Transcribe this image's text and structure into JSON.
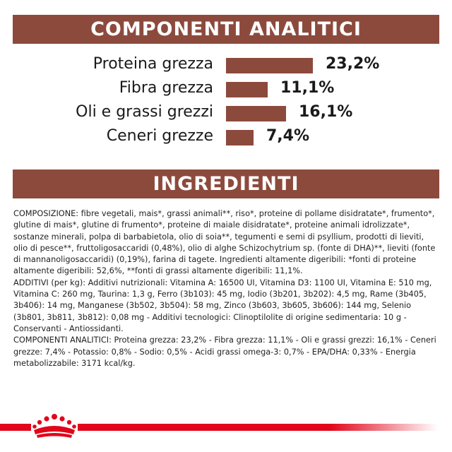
{
  "analytic": {
    "title": "COMPONENTI ANALITICI",
    "rows": [
      {
        "label": "Proteina grezza",
        "value": "23,2%",
        "percent": 23.2
      },
      {
        "label": "Fibra grezza",
        "value": "11,1%",
        "percent": 11.1
      },
      {
        "label": "Oli e grassi grezzi",
        "value": "16,1%",
        "percent": 16.1
      },
      {
        "label": "Ceneri grezze",
        "value": "7,4%",
        "percent": 7.4
      }
    ],
    "bar_color": "#8c4a3d"
  },
  "ingredients": {
    "title": "INGREDIENTI",
    "paragraphs": [
      "COMPOSIZIONE: fibre vegetali, mais*, grassi animali**, riso*, proteine di pollame disidratate*, frumento*, glutine di mais*, glutine di frumento*, proteine di maiale disidratate*, proteine animali idrolizzate*, sostanze minerali, polpa di barbabietola, olio di soia**, tegumenti e semi di psyllium, prodotti di lieviti, olio di pesce**, fruttoligosaccaridi (0,48%), olio di alghe Schizochytrium sp. (fonte di DHA)**, lieviti (fonte di mannanoligosaccaridi) (0,19%), farina di tagete. Ingredienti altamente digeribili: *fonti di proteine altamente digeribili: 52,6%, **fonti di grassi altamente digeribili: 11,1%.",
      "ADDITIVI (per kg): Additivi nutrizionali: Vitamina A: 16500 UI, Vitamina D3: 1100 UI, Vitamina E: 510 mg, Vitamina C: 260 mg, Taurina: 1,3 g, Ferro (3b103): 45 mg, Iodio (3b201, 3b202): 4,5 mg, Rame (3b405, 3b406): 14 mg, Manganese (3b502, 3b504): 58 mg, Zinco (3b603, 3b605, 3b606): 144 mg, Selenio (3b801, 3b811, 3b812): 0,08 mg - Additivi tecnologici: Clinoptilolite di origine sedimentaria: 10 g - Conservanti - Antiossidanti.",
      "COMPONENTI ANALITICI: Proteina grezza: 23,2% - Fibra grezza: 11,1% - Oli e grassi grezzi: 16,1% - Ceneri grezze: 7,4% - Potassio: 0,8% - Sodio: 0,5% - Acidi grassi omega-3: 0,7% - EPA/DHA: 0,33% - Energia metabolizzabile: 3171 kcal/kg."
    ]
  },
  "footer": {
    "logo": "royal-canin-crown-icon",
    "stripe_color": "#e2061a"
  }
}
